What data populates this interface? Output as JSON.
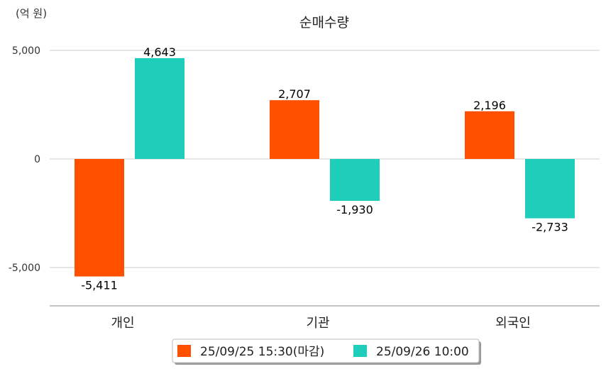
{
  "chart_data": {
    "type": "bar",
    "title": "순매수량",
    "ylabel": "(억 원)",
    "xlabel": "",
    "ylim": [
      -6750,
      5000
    ],
    "yticks": [
      5000,
      0,
      -5000
    ],
    "ytick_labels": [
      "5,000",
      "0",
      "-5,000"
    ],
    "grid": true,
    "legend_position": "bottom",
    "categories": [
      "개인",
      "기관",
      "외국인"
    ],
    "series": [
      {
        "name": "25/09/25 15:30(마감)",
        "color": "#FF5000",
        "values": [
          -5411,
          2707,
          2196
        ],
        "labels": [
          "-5,411",
          "2,707",
          "2,196"
        ]
      },
      {
        "name": "25/09/26 10:00",
        "color": "#1ECDBA",
        "values": [
          4643,
          -1930,
          -2733
        ],
        "labels": [
          "4,643",
          "-1,930",
          "-2,733"
        ]
      }
    ]
  }
}
